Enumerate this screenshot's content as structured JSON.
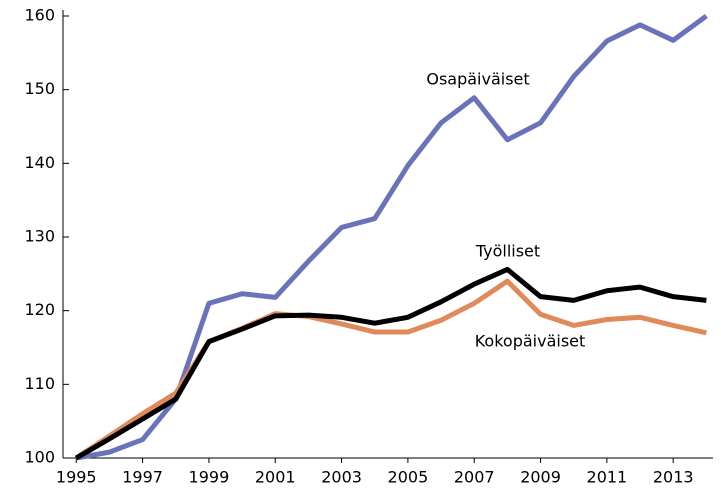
{
  "chart_data": {
    "type": "line",
    "x": [
      1995,
      1996,
      1997,
      1998,
      1999,
      2000,
      2001,
      2002,
      2003,
      2004,
      2005,
      2006,
      2007,
      2008,
      2009,
      2010,
      2011,
      2012,
      2013,
      2014
    ],
    "series": [
      {
        "name": "Osapäiväiset",
        "color": "#6a72ba",
        "values": [
          100,
          100.8,
          102.5,
          108,
          121,
          122.3,
          121.8,
          126.7,
          131.3,
          132.5,
          139.7,
          145.5,
          148.9,
          143.2,
          145.5,
          151.8,
          156.6,
          158.8,
          156.7,
          160
        ]
      },
      {
        "name": "Kokopäiväiset",
        "color": "#e08a5c",
        "values": [
          100,
          103,
          106,
          108.8,
          115.8,
          117.6,
          119.6,
          119.2,
          118.2,
          117.1,
          117.1,
          118.7,
          121,
          124,
          119.5,
          118,
          118.8,
          119.1,
          118,
          117
        ]
      },
      {
        "name": "Työlliset",
        "color": "#000000",
        "values": [
          100,
          102.6,
          105.3,
          108,
          115.8,
          117.5,
          119.3,
          119.4,
          119.1,
          118.3,
          119.1,
          121.2,
          123.6,
          125.6,
          121.9,
          121.4,
          122.7,
          123.2,
          121.9,
          121.4
        ]
      }
    ],
    "xlim": [
      1994.6,
      2014.2
    ],
    "xticks": [
      1995,
      1997,
      1999,
      2001,
      2003,
      2005,
      2007,
      2009,
      2011,
      2013
    ],
    "ylim": [
      100,
      160
    ],
    "yticks": [
      100,
      110,
      120,
      130,
      140,
      150,
      160
    ],
    "grid": false
  }
}
